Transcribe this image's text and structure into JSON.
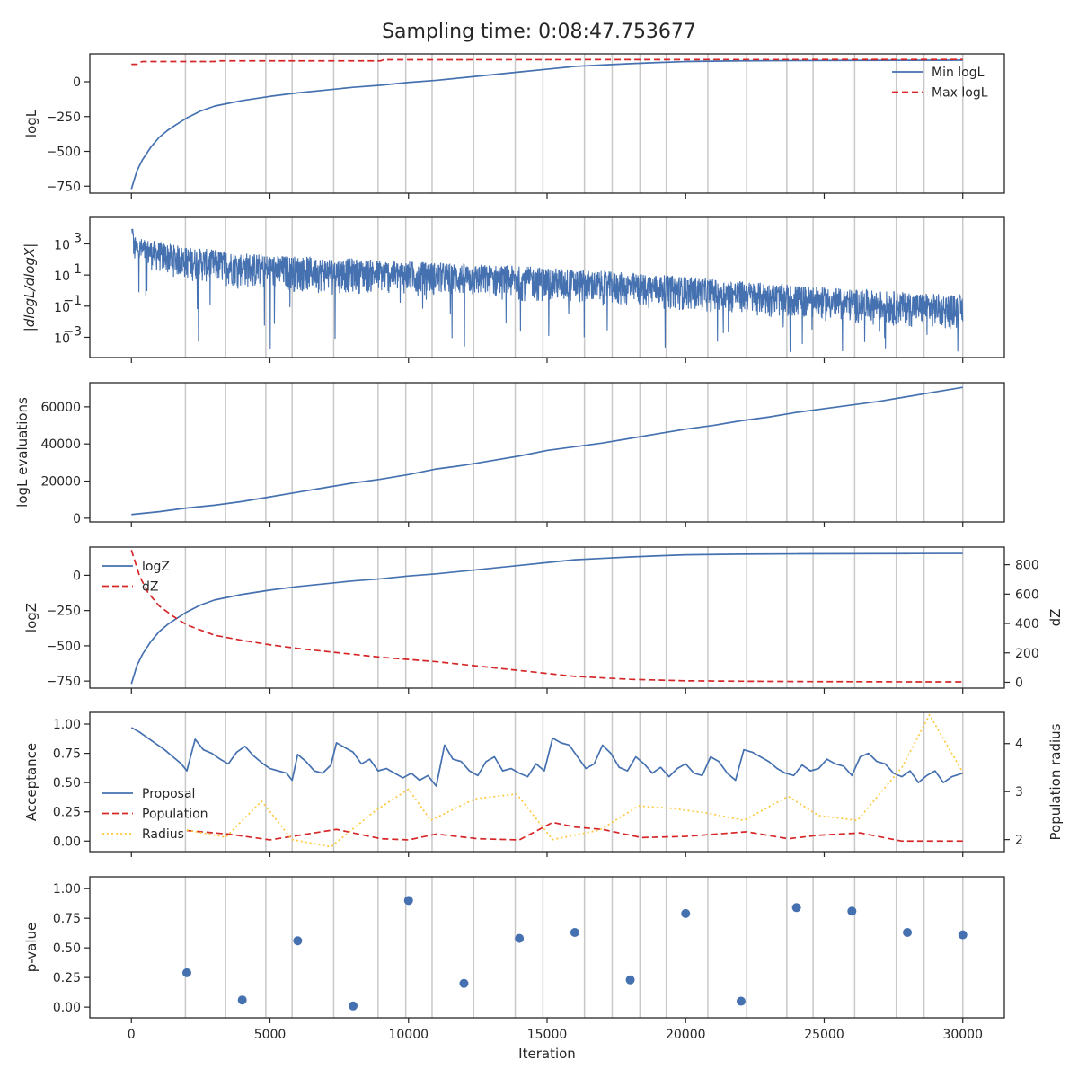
{
  "figure": {
    "title": "Sampling time: 0:08:47.753677"
  },
  "colors": {
    "blue": "#4571b0",
    "red": "#d62728",
    "gold": "#ffc83c",
    "vline": "#c8c8c8",
    "axis": "#262626"
  },
  "chart_data": [
    {
      "type": "line",
      "ylabel": "logL",
      "xlim": [
        -1500,
        31500
      ],
      "ylim": [
        -800,
        200
      ],
      "yticks": [
        0,
        -250,
        -500,
        -750
      ],
      "ytick_labels": [
        "0",
        "−250",
        "−500",
        "−750"
      ],
      "legend": "upper right",
      "series": [
        {
          "name": "Min logL",
          "style": "solid",
          "color": "#4571b0",
          "x": [
            0,
            200,
            400,
            700,
            1000,
            1300,
            1600,
            2000,
            2500,
            3000,
            3500,
            4000,
            5000,
            6000,
            7000,
            8000,
            9000,
            10000,
            11000,
            12000,
            13000,
            14000,
            15000,
            16000,
            17000,
            18000,
            19000,
            20000,
            22000,
            24000,
            26000,
            28000,
            30000
          ],
          "y": [
            -770,
            -640,
            -560,
            -470,
            -400,
            -350,
            -310,
            -260,
            -210,
            -175,
            -155,
            -135,
            -105,
            -80,
            -60,
            -40,
            -25,
            -5,
            10,
            30,
            50,
            70,
            90,
            110,
            120,
            130,
            138,
            145,
            150,
            152,
            153,
            154,
            155
          ]
        },
        {
          "name": "Max logL",
          "style": "dashed",
          "color": "#d62728",
          "x": [
            0,
            200,
            300,
            400,
            3000,
            3100,
            9000,
            9100,
            30000
          ],
          "y": [
            125,
            125,
            140,
            145,
            145,
            150,
            150,
            158,
            160
          ]
        }
      ]
    },
    {
      "type": "line",
      "ylabel": "|dlogL/dlogX|",
      "yscale": "log",
      "xlim": [
        -1500,
        31500
      ],
      "ylim_log10": [
        -4.3,
        4.7
      ],
      "yticks_log10": [
        3,
        1,
        -1,
        -3
      ],
      "ytick_labels": [
        "10",
        "10",
        "10",
        "10"
      ],
      "ytick_exponents": [
        "3",
        "1",
        "−1",
        "−3"
      ],
      "series": [
        {
          "name": "",
          "color": "#4571b0",
          "noise": "high-frequency band",
          "x": [
            0,
            2000,
            5000,
            10000,
            15000,
            20000,
            25000,
            30000
          ],
          "upper_log10": [
            3.5,
            2.8,
            2.3,
            1.9,
            1.5,
            0.9,
            0.2,
            -0.3
          ],
          "lower_log10": [
            1.6,
            0.6,
            -0.1,
            -0.3,
            -0.8,
            -1.3,
            -2.0,
            -2.6
          ],
          "spike_min_log10": -4.0
        }
      ]
    },
    {
      "type": "line",
      "ylabel": "logL evaluations",
      "xlim": [
        -1500,
        31500
      ],
      "ylim": [
        -2000,
        73000
      ],
      "yticks": [
        0,
        20000,
        40000,
        60000
      ],
      "ytick_labels": [
        "0",
        "20000",
        "40000",
        "60000"
      ],
      "series": [
        {
          "name": "",
          "color": "#4571b0",
          "x": [
            0,
            1000,
            2000,
            3000,
            4000,
            5000,
            6000,
            7000,
            8000,
            9000,
            10000,
            11000,
            12000,
            13000,
            14000,
            15000,
            16000,
            17000,
            18000,
            19000,
            20000,
            21000,
            22000,
            23000,
            24000,
            25000,
            26000,
            27000,
            28000,
            29000,
            30000
          ],
          "y": [
            2000,
            3500,
            5500,
            7000,
            9000,
            11500,
            14000,
            16500,
            19000,
            21000,
            23500,
            26500,
            28500,
            31000,
            33500,
            36500,
            38500,
            40500,
            43000,
            45500,
            48000,
            50000,
            52500,
            54500,
            57000,
            59000,
            61000,
            63000,
            65500,
            68000,
            70500
          ]
        }
      ]
    },
    {
      "type": "line",
      "ylabel": "logZ",
      "ylabel_right": "dZ",
      "xlim": [
        -1500,
        31500
      ],
      "ylim": [
        -800,
        200
      ],
      "ylim_right": [
        -40,
        920
      ],
      "yticks": [
        0,
        -250,
        -500,
        -750
      ],
      "ytick_labels": [
        "0",
        "−250",
        "−500",
        "−750"
      ],
      "yticks_right": [
        800,
        600,
        400,
        200,
        0
      ],
      "ytick_labels_right": [
        "800",
        "600",
        "400",
        "200",
        "0"
      ],
      "legend": "upper left",
      "series": [
        {
          "name": "logZ",
          "style": "solid",
          "color": "#4571b0",
          "axis": "left",
          "x": [
            0,
            200,
            400,
            700,
            1000,
            1300,
            1600,
            2000,
            2500,
            3000,
            3500,
            4000,
            5000,
            6000,
            7000,
            8000,
            9000,
            10000,
            11000,
            12000,
            13000,
            14000,
            15000,
            16000,
            17000,
            18000,
            19000,
            20000,
            22000,
            24000,
            26000,
            28000,
            30000
          ],
          "y": [
            -770,
            -640,
            -560,
            -470,
            -400,
            -350,
            -310,
            -260,
            -210,
            -175,
            -155,
            -135,
            -105,
            -80,
            -60,
            -40,
            -25,
            -5,
            10,
            30,
            50,
            70,
            90,
            110,
            120,
            130,
            138,
            145,
            150,
            152,
            153,
            154,
            155
          ]
        },
        {
          "name": "dZ",
          "style": "dashed",
          "color": "#d62728",
          "axis": "right",
          "x": [
            0,
            300,
            600,
            1000,
            1500,
            2000,
            3000,
            4000,
            5000,
            6000,
            7000,
            8000,
            9000,
            10000,
            11000,
            12000,
            13000,
            14000,
            15000,
            16000,
            17000,
            18000,
            19000,
            20000,
            22000,
            24000,
            26000,
            28000,
            30000
          ],
          "y": [
            900,
            720,
            610,
            520,
            450,
            390,
            320,
            285,
            255,
            230,
            210,
            190,
            170,
            155,
            140,
            120,
            100,
            80,
            60,
            40,
            30,
            20,
            15,
            10,
            7,
            5,
            4,
            3,
            3
          ]
        }
      ]
    },
    {
      "type": "line",
      "ylabel": "Acceptance",
      "ylabel_right": "Population radius",
      "xlim": [
        -1500,
        31500
      ],
      "ylim": [
        -0.09,
        1.1
      ],
      "ylim_right": [
        1.75,
        4.65
      ],
      "yticks": [
        1.0,
        0.75,
        0.5,
        0.25,
        0.0
      ],
      "ytick_labels": [
        "1.00",
        "0.75",
        "0.50",
        "0.25",
        "0.00"
      ],
      "yticks_right": [
        4,
        3,
        2
      ],
      "ytick_labels_right": [
        "4",
        "3",
        "2"
      ],
      "legend": "lower left",
      "series": [
        {
          "name": "Proposal",
          "style": "solid",
          "color": "#4571b0",
          "axis": "left",
          "x": [
            0,
            300,
            600,
            900,
            1200,
            1500,
            1800,
            2000,
            2300,
            2600,
            2900,
            3200,
            3500,
            3800,
            4100,
            4400,
            4700,
            5000,
            5300,
            5600,
            5800,
            6000,
            6300,
            6600,
            6900,
            7200,
            7400,
            7700,
            8000,
            8300,
            8600,
            8900,
            9200,
            9500,
            9800,
            10100,
            10400,
            10700,
            11000,
            11300,
            11600,
            11900,
            12200,
            12500,
            12800,
            13100,
            13400,
            13700,
            14000,
            14300,
            14600,
            14900,
            15200,
            15500,
            15800,
            16100,
            16400,
            16700,
            17000,
            17300,
            17600,
            17900,
            18200,
            18500,
            18800,
            19100,
            19400,
            19700,
            20000,
            20300,
            20600,
            20900,
            21200,
            21500,
            21800,
            22100,
            22400,
            22700,
            23000,
            23300,
            23600,
            23900,
            24200,
            24500,
            24800,
            25100,
            25400,
            25700,
            26000,
            26300,
            26600,
            26900,
            27200,
            27500,
            27800,
            28100,
            28400,
            28700,
            29000,
            29300,
            29600,
            30000
          ],
          "y": [
            0.97,
            0.93,
            0.88,
            0.83,
            0.78,
            0.72,
            0.66,
            0.6,
            0.87,
            0.78,
            0.75,
            0.7,
            0.66,
            0.76,
            0.81,
            0.73,
            0.67,
            0.62,
            0.6,
            0.58,
            0.52,
            0.74,
            0.68,
            0.6,
            0.58,
            0.65,
            0.84,
            0.8,
            0.76,
            0.66,
            0.7,
            0.6,
            0.62,
            0.58,
            0.54,
            0.58,
            0.52,
            0.56,
            0.47,
            0.82,
            0.7,
            0.68,
            0.6,
            0.56,
            0.68,
            0.72,
            0.6,
            0.62,
            0.58,
            0.55,
            0.66,
            0.6,
            0.88,
            0.84,
            0.82,
            0.72,
            0.62,
            0.66,
            0.82,
            0.75,
            0.63,
            0.6,
            0.72,
            0.66,
            0.58,
            0.63,
            0.55,
            0.62,
            0.66,
            0.58,
            0.56,
            0.72,
            0.68,
            0.58,
            0.52,
            0.78,
            0.76,
            0.72,
            0.68,
            0.62,
            0.58,
            0.56,
            0.65,
            0.6,
            0.62,
            0.7,
            0.66,
            0.64,
            0.56,
            0.72,
            0.75,
            0.68,
            0.66,
            0.58,
            0.55,
            0.6,
            0.5,
            0.56,
            0.6,
            0.5,
            0.55,
            0.58
          ]
        },
        {
          "name": "Population",
          "style": "dashed",
          "color": "#d62728",
          "axis": "left",
          "x": [
            2000,
            3500,
            5000,
            7400,
            9000,
            10000,
            11000,
            12500,
            14000,
            15200,
            16000,
            17000,
            18400,
            20000,
            22200,
            23700,
            24800,
            26300,
            27800,
            28800,
            30000
          ],
          "y": [
            0.09,
            0.06,
            0.01,
            0.1,
            0.02,
            0.01,
            0.06,
            0.02,
            0.01,
            0.16,
            0.12,
            0.1,
            0.03,
            0.04,
            0.08,
            0.02,
            0.05,
            0.07,
            0.0,
            0.0,
            0.0
          ]
        },
        {
          "name": "Radius",
          "style": "dotted",
          "color": "#ffc83c",
          "axis": "right",
          "x": [
            2000,
            3400,
            4700,
            5800,
            7200,
            8800,
            10000,
            10800,
            12400,
            13900,
            15200,
            16900,
            18300,
            19500,
            20800,
            22100,
            23700,
            24800,
            26200,
            27800,
            28800,
            30000
          ],
          "y": [
            2.2,
            2.05,
            2.8,
            2.0,
            1.85,
            2.6,
            3.05,
            2.4,
            2.85,
            2.95,
            2.0,
            2.2,
            2.7,
            2.65,
            2.55,
            2.4,
            2.9,
            2.5,
            2.4,
            3.5,
            4.6,
            3.4
          ]
        }
      ]
    },
    {
      "type": "scatter",
      "ylabel": "p-value",
      "xlabel": "Iteration",
      "xlim": [
        -1500,
        31500
      ],
      "ylim": [
        -0.09,
        1.1
      ],
      "yticks": [
        1.0,
        0.75,
        0.5,
        0.25,
        0.0
      ],
      "ytick_labels": [
        "1.00",
        "0.75",
        "0.50",
        "0.25",
        "0.00"
      ],
      "xticks": [
        0,
        5000,
        10000,
        15000,
        20000,
        25000,
        30000
      ],
      "xtick_labels": [
        "0",
        "5000",
        "10000",
        "15000",
        "20000",
        "25000",
        "30000"
      ],
      "series": [
        {
          "name": "",
          "color": "#4571b0",
          "x": [
            2000,
            4000,
            6000,
            8000,
            10000,
            12000,
            14000,
            16000,
            18000,
            20000,
            22000,
            24000,
            26000,
            28000,
            30000
          ],
          "y": [
            0.29,
            0.06,
            0.56,
            0.01,
            0.9,
            0.2,
            0.58,
            0.63,
            0.23,
            0.79,
            0.05,
            0.84,
            0.81,
            0.63,
            0.61
          ]
        }
      ]
    }
  ],
  "vlines": [
    1950,
    3400,
    4850,
    5800,
    7300,
    8900,
    9900,
    10850,
    12350,
    13850,
    14850,
    16350,
    17350,
    18350,
    19300,
    20800,
    22200,
    23650,
    24600,
    26100,
    27600,
    28600,
    30000
  ]
}
